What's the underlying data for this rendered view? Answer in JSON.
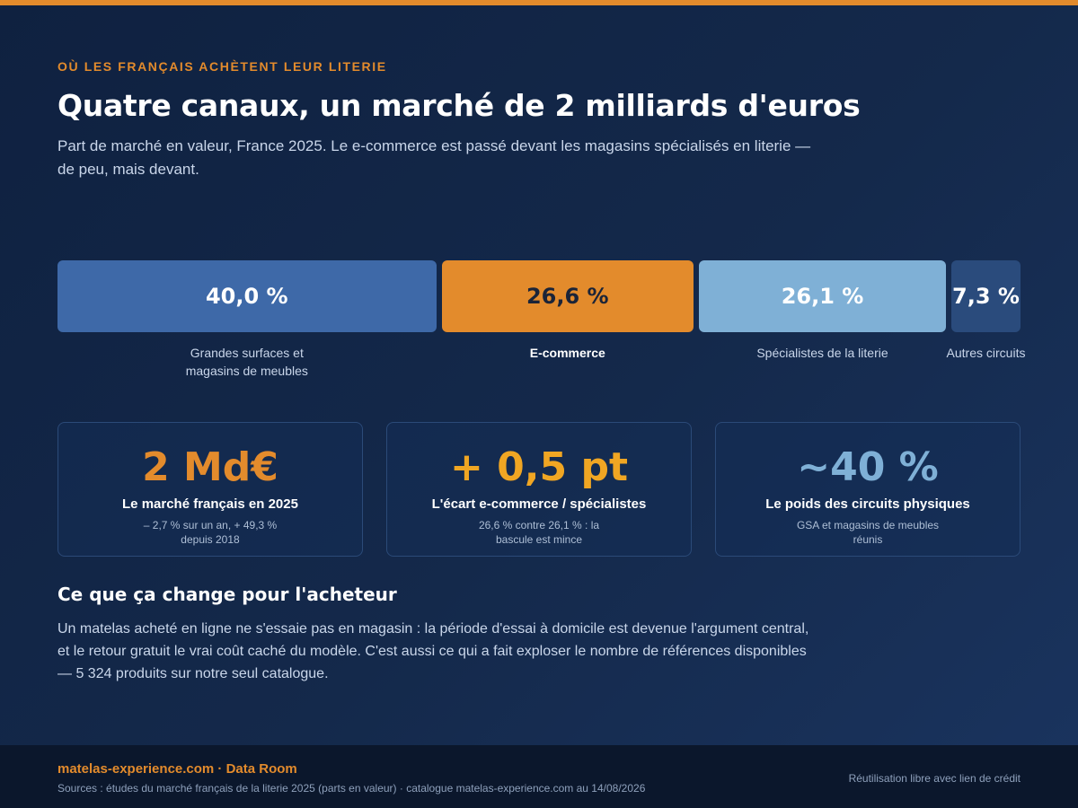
{
  "header": {
    "eyebrow": "OÙ LES FRANÇAIS ACHÈTENT LEUR LITERIE",
    "title": "Quatre canaux, un marché de 2 milliards d'euros",
    "subtitle": "Part de marché en valeur, France 2025. Le e-commerce est passé devant les magasins spécialisés en literie — de peu, mais devant."
  },
  "chart_data": {
    "type": "bar",
    "orientation": "horizontal-stacked",
    "unit": "%",
    "categories": [
      "Grandes surfaces et magasins de meubles",
      "E-commerce",
      "Spécialistes de la literie",
      "Autres circuits"
    ],
    "values": [
      40.0,
      26.6,
      26.1,
      7.3
    ],
    "value_labels": [
      "40,0 %",
      "26,6 %",
      "26,1 %",
      "7,3 %"
    ],
    "colors": [
      "#3e69a8",
      "#e38b2c",
      "#7fb0d6",
      "#2a4b7c"
    ],
    "text_colors": [
      "#ffffff",
      "#1b2438",
      "#ffffff",
      "#ffffff"
    ],
    "highlight_index": 1,
    "legend": "none",
    "grid": false
  },
  "cards": [
    {
      "big": "2 Md€",
      "color": "#e38b2c",
      "label": "Le marché français en 2025",
      "note": "– 2,7 % sur un an, + 49,3 % depuis 2018"
    },
    {
      "big": "+ 0,5 pt",
      "color": "#f0a623",
      "label": "L'écart e-commerce / spécialistes",
      "note": "26,6 % contre 26,1 % : la bascule est mince"
    },
    {
      "big": "~40 %",
      "color": "#7fb0d6",
      "label": "Le poids des circuits physiques",
      "note": "GSA et magasins de meubles réunis"
    }
  ],
  "section": {
    "title": "Ce que ça change pour l'acheteur",
    "body": "Un matelas acheté en ligne ne s'essaie pas en magasin : la période d'essai à domicile est devenue l'argument central, et le retour gratuit le vrai coût caché du modèle. C'est aussi ce qui a fait exploser le nombre de références disponibles — 5 324 produits sur notre seul catalogue."
  },
  "footer": {
    "brand": "matelas-experience.com · Data Room",
    "sources": "Sources : études du marché français de la literie 2025 (parts en valeur) · catalogue matelas-experience.com au 14/08/2026",
    "license": "Réutilisation libre avec lien de crédit"
  }
}
